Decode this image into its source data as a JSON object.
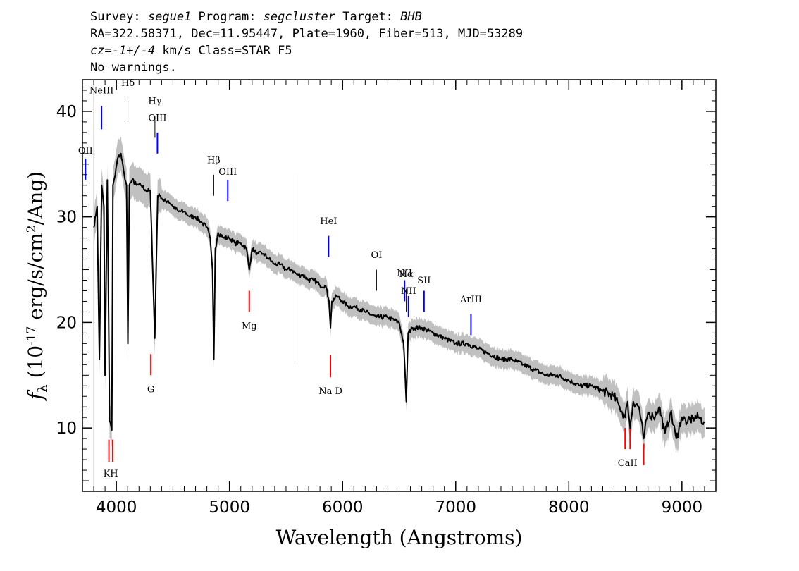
{
  "header": {
    "line1": {
      "survey_label": "Survey: ",
      "survey": "segue1",
      "program_label": " Program: ",
      "program": "segcluster",
      "target_label": " Target: ",
      "target": "BHB"
    },
    "line2": "RA=322.58371, Dec=11.95447, Plate=1960, Fiber=513, MJD=53289",
    "line3": {
      "cz_label": "cz",
      "cz_value": "=-1+/-4",
      "rest": " km/s Class=STAR F5"
    },
    "line4": "No warnings."
  },
  "chart_data": {
    "type": "line",
    "xlabel": "Wavelength (Angstroms)",
    "ylabel": "f_λ (10^-17 erg/s/cm^2/Ang)",
    "xlim": [
      3700,
      9300
    ],
    "ylim": [
      4,
      43
    ],
    "x_ticks": [
      4000,
      5000,
      6000,
      7000,
      8000,
      9000
    ],
    "y_ticks": [
      10,
      20,
      30,
      40
    ],
    "x_tick_labels": [
      "4000",
      "5000",
      "6000",
      "7000",
      "8000",
      "9000"
    ],
    "y_tick_labels": [
      "10",
      "20",
      "30",
      "40"
    ],
    "grid": false,
    "legend": "none",
    "colors": {
      "flux": "#000000",
      "error": "#c0c0c0",
      "emission": "#0000ff",
      "absorption": "#ff0000",
      "balmer": "#000000"
    },
    "series": [
      {
        "x": [
          3800,
          3830,
          3850,
          3870,
          3890,
          3900,
          3920,
          3940,
          3960,
          3970,
          3990,
          4010,
          4040,
          4070,
          4090,
          4102,
          4115,
          4140,
          4180,
          4220,
          4260,
          4300,
          4340,
          4365,
          4390,
          4420,
          4460,
          4500,
          4550,
          4600,
          4650,
          4700,
          4750,
          4800,
          4830,
          4850,
          4862,
          4875,
          4900,
          4950,
          5000,
          5050,
          5100,
          5150,
          5175,
          5200,
          5250,
          5300,
          5350,
          5400,
          5450,
          5500,
          5550,
          5600,
          5650,
          5700,
          5750,
          5800,
          5850,
          5880,
          5893,
          5905,
          5950,
          6000,
          6050,
          6100,
          6200,
          6300,
          6400,
          6500,
          6540,
          6563,
          6580,
          6620,
          6700,
          6800,
          6900,
          7000,
          7100,
          7200,
          7300,
          7400,
          7500,
          7600,
          7700,
          7800,
          7900,
          8000,
          8100,
          8200,
          8300,
          8400,
          8450,
          8498,
          8520,
          8542,
          8570,
          8620,
          8662,
          8700,
          8750,
          8800,
          8850,
          8900,
          8950,
          9000,
          9050,
          9100,
          9150,
          9200
        ],
        "y": [
          29,
          31,
          16.5,
          33,
          31,
          15,
          33.5,
          10.7,
          9.8,
          33,
          34,
          35.5,
          36,
          34,
          33,
          18,
          33,
          33.5,
          33,
          33,
          32.5,
          32.5,
          18.5,
          32,
          32,
          31.5,
          31.5,
          31,
          30.5,
          30.5,
          30,
          30,
          29.5,
          29,
          28,
          25,
          16.5,
          27,
          28.5,
          28,
          28,
          27.5,
          27.5,
          27,
          25,
          27,
          26.5,
          26.5,
          26,
          25.5,
          25.5,
          25,
          25,
          24.5,
          24.5,
          24,
          24,
          23.5,
          23.5,
          22,
          19.5,
          22,
          22.5,
          22,
          21.5,
          21.5,
          21,
          20.5,
          20.5,
          20,
          18,
          12.5,
          19,
          19.5,
          19.5,
          19,
          18.5,
          18,
          18,
          17.5,
          17,
          16.5,
          16.5,
          16,
          15.5,
          15,
          15,
          14.5,
          14,
          14,
          13.5,
          13,
          12,
          11,
          12.5,
          10,
          12.5,
          12,
          9,
          11.5,
          11,
          12,
          9.5,
          11.5,
          9,
          11,
          10.5,
          11,
          11,
          10.5
        ]
      }
    ],
    "line_labels": {
      "top": [
        {
          "text": "NeIII",
          "x": 3869,
          "color": "#0000ff"
        },
        {
          "text": "Hδ",
          "x": 4102,
          "color": "#000000"
        },
        {
          "text": "Hγ",
          "x": 4341,
          "color": "#000000"
        },
        {
          "text": "OIII",
          "x": 4363,
          "color": "#0000ff"
        },
        {
          "text": "OII",
          "x": 3727,
          "color": "#0000ff"
        },
        {
          "text": "Hβ",
          "x": 4861,
          "color": "#000000"
        },
        {
          "text": "OIII",
          "x": 4985,
          "color": "#0000ff"
        },
        {
          "text": "HeI",
          "x": 5876,
          "color": "#0000ff"
        },
        {
          "text": "OI",
          "x": 6300,
          "color": "#000000"
        },
        {
          "text": "NII",
          "x": 6548,
          "color": "#0000ff"
        },
        {
          "text": "Hα",
          "x": 6563,
          "color": "#000000"
        },
        {
          "text": "NII",
          "x": 6583,
          "color": "#0000ff"
        },
        {
          "text": "SII",
          "x": 6720,
          "color": "#0000ff"
        },
        {
          "text": "ArIII",
          "x": 7135,
          "color": "#0000ff"
        }
      ],
      "bottom": [
        {
          "text": "KH",
          "x": 3950,
          "color": "#ff0000"
        },
        {
          "text": "G",
          "x": 4305,
          "color": "#ff0000"
        },
        {
          "text": "Mg",
          "x": 5175,
          "color": "#ff0000"
        },
        {
          "text": "Na D",
          "x": 5893,
          "color": "#ff0000"
        },
        {
          "text": "CaII",
          "x": 8520,
          "color": "#ff0000"
        }
      ]
    }
  }
}
